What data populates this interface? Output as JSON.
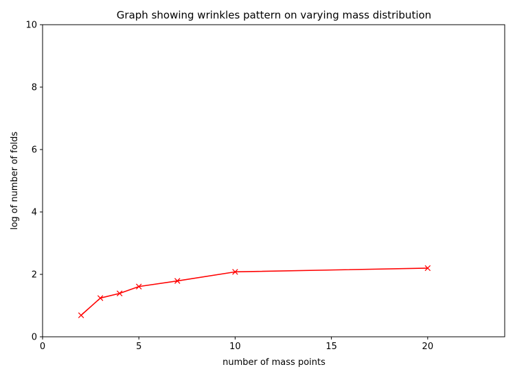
{
  "chart_data": {
    "type": "line",
    "title": "Graph showing wrinkles pattern on varying mass distribution",
    "xlabel": "number of mass points",
    "ylabel": "log of number of folds",
    "xlim": [
      0,
      24
    ],
    "ylim": [
      0,
      10
    ],
    "xticks": [
      0,
      5,
      10,
      15,
      20
    ],
    "yticks": [
      0,
      2,
      4,
      6,
      8,
      10
    ],
    "grid": false,
    "series": [
      {
        "color": "#ff0000",
        "marker": "x",
        "x": [
          2,
          3,
          4,
          5,
          7,
          10,
          20
        ],
        "y": [
          0.69,
          1.24,
          1.39,
          1.61,
          1.79,
          2.08,
          2.2
        ]
      }
    ]
  }
}
